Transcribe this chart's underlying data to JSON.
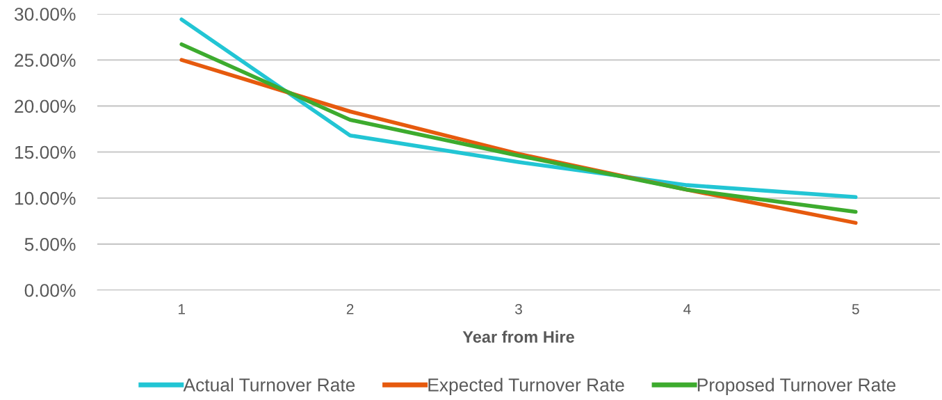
{
  "chart_data": {
    "type": "line",
    "xlabel": "Year from Hire",
    "categories": [
      "1",
      "2",
      "3",
      "4",
      "5"
    ],
    "series": [
      {
        "name": "Actual Turnover Rate",
        "color": "#22c5d4",
        "values": [
          29.4,
          16.8,
          13.9,
          11.4,
          10.1
        ]
      },
      {
        "name": "Expected Turnover Rate",
        "color": "#e65a0e",
        "values": [
          25.0,
          19.4,
          14.8,
          10.9,
          7.3
        ]
      },
      {
        "name": "Proposed Turnover Rate",
        "color": "#3dab2e",
        "values": [
          26.7,
          18.5,
          14.6,
          10.9,
          8.5
        ]
      }
    ],
    "ylim": [
      0,
      30
    ],
    "yticks": [
      {
        "value": 0,
        "label": "0.00%"
      },
      {
        "value": 5,
        "label": "5.00%"
      },
      {
        "value": 10,
        "label": "10.00%"
      },
      {
        "value": 15,
        "label": "15.00%"
      },
      {
        "value": 20,
        "label": "20.00%"
      },
      {
        "value": 25,
        "label": "25.00%"
      },
      {
        "value": 30,
        "label": "30.00%"
      }
    ],
    "grid": "y",
    "legend": "bottom",
    "marker": "none",
    "line_style": "solid"
  }
}
